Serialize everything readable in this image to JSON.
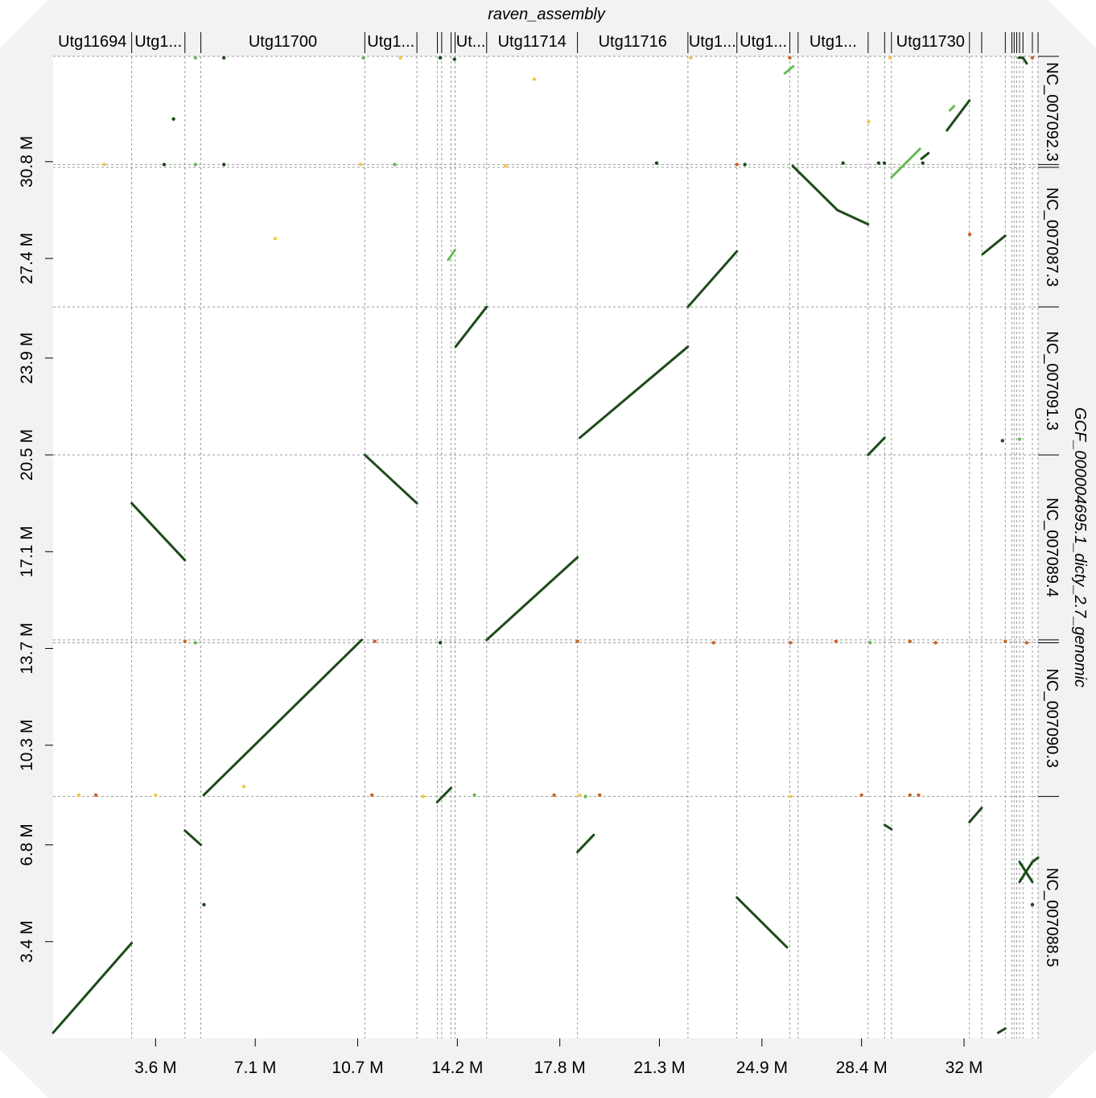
{
  "chart_data": {
    "type": "dotplot",
    "title": "",
    "xlabel": "raven_assembly",
    "ylabel": "GCF_000004695.1_dicty_2.7_genomic",
    "xlim": [
      0,
      34.6
    ],
    "ylim": [
      0,
      34.5
    ],
    "x_ticks": [
      {
        "value": 3.6,
        "label": "3.6 M"
      },
      {
        "value": 7.1,
        "label": "7.1 M"
      },
      {
        "value": 10.7,
        "label": "10.7 M"
      },
      {
        "value": 14.2,
        "label": "14.2 M"
      },
      {
        "value": 17.8,
        "label": "17.8 M"
      },
      {
        "value": 21.3,
        "label": "21.3 M"
      },
      {
        "value": 24.9,
        "label": "24.9 M"
      },
      {
        "value": 28.4,
        "label": "28.4 M"
      },
      {
        "value": 32.0,
        "label": "32 M"
      }
    ],
    "y_ticks": [
      {
        "value": 3.4,
        "label": "3.4 M"
      },
      {
        "value": 6.8,
        "label": "6.8 M"
      },
      {
        "value": 10.3,
        "label": "10.3 M"
      },
      {
        "value": 13.7,
        "label": "13.7 M"
      },
      {
        "value": 17.1,
        "label": "17.1 M"
      },
      {
        "value": 20.5,
        "label": "20.5 M"
      },
      {
        "value": 23.9,
        "label": "23.9 M"
      },
      {
        "value": 27.4,
        "label": "27.4 M"
      },
      {
        "value": 30.8,
        "label": "30.8 M"
      }
    ],
    "x_contig_boundaries": [
      2.76,
      4.63,
      5.19,
      10.95,
      12.78,
      13.5,
      13.65,
      13.98,
      14.12,
      15.23,
      18.42,
      22.3,
      24.02,
      25.88,
      26.17,
      28.63,
      29.21,
      29.45,
      32.19,
      32.62,
      33.45,
      33.68,
      33.76,
      33.85,
      33.95,
      34.07,
      34.4,
      34.6
    ],
    "x_contig_labels": [
      {
        "label": "Utg11694",
        "start": 0.0,
        "end": 2.76
      },
      {
        "label": "Utg1...",
        "start": 2.76,
        "end": 4.63
      },
      {
        "label": "Utg11700",
        "start": 5.19,
        "end": 10.95
      },
      {
        "label": "Utg1...",
        "start": 10.95,
        "end": 12.78
      },
      {
        "label": "Ut...",
        "start": 14.12,
        "end": 15.23
      },
      {
        "label": "Utg11714",
        "start": 15.23,
        "end": 18.42
      },
      {
        "label": "Utg11716",
        "start": 18.42,
        "end": 22.3
      },
      {
        "label": "Utg1...",
        "start": 22.3,
        "end": 24.02
      },
      {
        "label": "Utg1...",
        "start": 24.02,
        "end": 25.88
      },
      {
        "label": "Utg1...",
        "start": 26.17,
        "end": 28.63
      },
      {
        "label": "Utg11730",
        "start": 29.45,
        "end": 32.19
      }
    ],
    "y_chromosomes": [
      {
        "label": "NC_007088.5",
        "start": 0.0,
        "end": 8.5
      },
      {
        "label": "NC_007090.3",
        "start": 8.5,
        "end": 14.0
      },
      {
        "label": "NC_007089.4",
        "start": 14.0,
        "end": 20.5
      },
      {
        "label": "NC_007091.3",
        "start": 20.5,
        "end": 25.7
      },
      {
        "label": "NC_007087.3",
        "start": 25.7,
        "end": 30.6
      },
      {
        "label": "NC_007092.3",
        "start": 30.6,
        "end": 34.5
      }
    ],
    "y_extra_boundaries": [
      13.9,
      30.7
    ],
    "series": [
      {
        "color": "#1e4a1a",
        "segments": [
          [
            0.0,
            0.2,
            2.76,
            3.35
          ],
          [
            2.76,
            18.8,
            4.63,
            16.8
          ],
          [
            5.29,
            8.55,
            10.84,
            14.0
          ],
          [
            10.95,
            20.5,
            12.78,
            18.8
          ],
          [
            14.14,
            24.3,
            15.23,
            25.7
          ],
          [
            15.23,
            14.0,
            18.42,
            16.9
          ],
          [
            18.5,
            21.1,
            22.3,
            24.3
          ],
          [
            22.3,
            25.7,
            24.02,
            27.65
          ],
          [
            24.02,
            4.95,
            25.78,
            3.2
          ],
          [
            25.98,
            30.65,
            27.55,
            29.1
          ],
          [
            27.55,
            29.1,
            28.63,
            28.6
          ],
          [
            28.63,
            20.5,
            29.21,
            21.1
          ],
          [
            31.4,
            31.9,
            32.19,
            32.95
          ],
          [
            32.65,
            27.55,
            33.45,
            28.2
          ],
          [
            32.19,
            7.6,
            32.62,
            8.1
          ],
          [
            33.2,
            0.2,
            33.45,
            0.35
          ],
          [
            4.63,
            7.3,
            5.19,
            6.8
          ],
          [
            18.42,
            6.55,
            18.99,
            7.15
          ],
          [
            13.49,
            8.3,
            13.98,
            8.8
          ],
          [
            29.21,
            7.5,
            29.45,
            7.35
          ],
          [
            33.95,
            6.2,
            34.4,
            5.5
          ],
          [
            33.95,
            5.5,
            34.4,
            6.2
          ],
          [
            34.4,
            6.2,
            34.6,
            6.35
          ],
          [
            33.92,
            34.45,
            34.07,
            34.45
          ],
          [
            34.07,
            34.45,
            34.2,
            34.25
          ],
          [
            30.5,
            30.9,
            30.75,
            31.1
          ]
        ]
      },
      {
        "color": "#66bb55",
        "segments": [
          [
            29.45,
            30.25,
            30.45,
            31.25
          ],
          [
            25.7,
            33.9,
            26.0,
            34.15
          ],
          [
            13.88,
            27.35,
            14.12,
            27.7
          ],
          [
            31.5,
            32.6,
            31.65,
            32.75
          ]
        ]
      }
    ],
    "points": [
      {
        "x": 4.23,
        "y": 32.3,
        "color": "#1e4a1a"
      },
      {
        "x": 3.9,
        "y": 30.7,
        "color": "#1e4a1a"
      },
      {
        "x": 6.0,
        "y": 30.7,
        "color": "#1e4a1a"
      },
      {
        "x": 6.0,
        "y": 34.45,
        "color": "#1e4a1a"
      },
      {
        "x": 21.2,
        "y": 30.75,
        "color": "#1e4a1a"
      },
      {
        "x": 24.3,
        "y": 30.7,
        "color": "#1e4a1a"
      },
      {
        "x": 27.75,
        "y": 30.75,
        "color": "#1e4a1a"
      },
      {
        "x": 30.55,
        "y": 30.75,
        "color": "#1e4a1a"
      },
      {
        "x": 29.0,
        "y": 30.75,
        "color": "#1e4a1a"
      },
      {
        "x": 29.2,
        "y": 30.75,
        "color": "#1e4a1a"
      },
      {
        "x": 5.3,
        "y": 4.7,
        "color": "#1e4a1a"
      },
      {
        "x": 33.35,
        "y": 21.0,
        "color": "#1e4a1a"
      },
      {
        "x": 13.6,
        "y": 34.45,
        "color": "#1e4a1a"
      },
      {
        "x": 14.1,
        "y": 34.4,
        "color": "#1e4a1a"
      },
      {
        "x": 34.4,
        "y": 4.7,
        "color": "#1e4a1a"
      },
      {
        "x": 13.6,
        "y": 13.9,
        "color": "#1e4a1a"
      },
      {
        "x": 5.0,
        "y": 34.45,
        "color": "#66bb55"
      },
      {
        "x": 10.9,
        "y": 34.45,
        "color": "#66bb55"
      },
      {
        "x": 5.0,
        "y": 30.7,
        "color": "#66bb55"
      },
      {
        "x": 12.0,
        "y": 30.7,
        "color": "#66bb55"
      },
      {
        "x": 5.0,
        "y": 13.9,
        "color": "#66bb55"
      },
      {
        "x": 14.8,
        "y": 8.55,
        "color": "#66bb55"
      },
      {
        "x": 18.7,
        "y": 8.5,
        "color": "#66bb55"
      },
      {
        "x": 28.7,
        "y": 13.9,
        "color": "#66bb55"
      },
      {
        "x": 33.95,
        "y": 21.05,
        "color": "#66bb55"
      },
      {
        "x": 0.9,
        "y": 8.55,
        "color": "#f4c542"
      },
      {
        "x": 3.6,
        "y": 8.55,
        "color": "#f4c542"
      },
      {
        "x": 7.8,
        "y": 28.1,
        "color": "#f4c542"
      },
      {
        "x": 6.7,
        "y": 8.85,
        "color": "#f4c542"
      },
      {
        "x": 16.9,
        "y": 33.7,
        "color": "#f4c542"
      },
      {
        "x": 12.2,
        "y": 34.45,
        "color": "#f4c542"
      },
      {
        "x": 10.8,
        "y": 30.7,
        "color": "#f4c542"
      },
      {
        "x": 13.0,
        "y": 8.5,
        "color": "#f4c542"
      },
      {
        "x": 18.5,
        "y": 8.55,
        "color": "#f4c542"
      },
      {
        "x": 25.9,
        "y": 8.5,
        "color": "#f4c542"
      },
      {
        "x": 28.65,
        "y": 32.2,
        "color": "#f4c542"
      },
      {
        "x": 1.8,
        "y": 30.7,
        "color": "#f4c542"
      },
      {
        "x": 15.9,
        "y": 30.65,
        "color": "#f4c542"
      },
      {
        "x": 22.4,
        "y": 34.45,
        "color": "#f4c542"
      },
      {
        "x": 29.4,
        "y": 34.45,
        "color": "#f4c542"
      },
      {
        "x": 1.5,
        "y": 8.55,
        "color": "#c86428"
      },
      {
        "x": 11.2,
        "y": 8.55,
        "color": "#c86428"
      },
      {
        "x": 17.6,
        "y": 8.55,
        "color": "#c86428"
      },
      {
        "x": 19.2,
        "y": 8.55,
        "color": "#c86428"
      },
      {
        "x": 28.4,
        "y": 8.55,
        "color": "#c86428"
      },
      {
        "x": 30.1,
        "y": 8.55,
        "color": "#c86428"
      },
      {
        "x": 30.4,
        "y": 8.55,
        "color": "#c86428"
      },
      {
        "x": 4.63,
        "y": 13.95,
        "color": "#c86428"
      },
      {
        "x": 11.3,
        "y": 13.95,
        "color": "#c86428"
      },
      {
        "x": 18.42,
        "y": 13.95,
        "color": "#c86428"
      },
      {
        "x": 23.2,
        "y": 13.9,
        "color": "#c86428"
      },
      {
        "x": 25.9,
        "y": 13.9,
        "color": "#c86428"
      },
      {
        "x": 27.5,
        "y": 13.95,
        "color": "#c86428"
      },
      {
        "x": 30.1,
        "y": 13.95,
        "color": "#c86428"
      },
      {
        "x": 31.0,
        "y": 13.9,
        "color": "#c86428"
      },
      {
        "x": 33.45,
        "y": 13.95,
        "color": "#c86428"
      },
      {
        "x": 34.2,
        "y": 13.9,
        "color": "#c86428"
      },
      {
        "x": 24.02,
        "y": 30.7,
        "color": "#c86428"
      },
      {
        "x": 25.88,
        "y": 34.45,
        "color": "#c86428"
      },
      {
        "x": 32.2,
        "y": 28.25,
        "color": "#c86428"
      },
      {
        "x": 34.4,
        "y": 34.45,
        "color": "#c86428"
      }
    ]
  }
}
